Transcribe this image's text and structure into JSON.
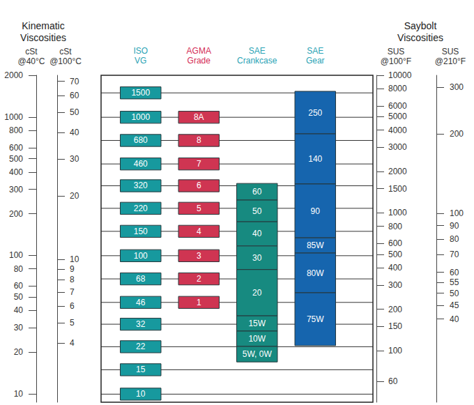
{
  "chart_data": {
    "type": "bar",
    "annotations": [
      "Kinematic Viscosities",
      "Saybolt Viscosities"
    ],
    "categories": [
      "ISO VG",
      "AGMA Grade",
      "SAE Crankcase",
      "SAE Gear"
    ],
    "log": "y",
    "grid": true,
    "ylabel": "cSt @40°C",
    "ylim": [
      8.7,
      2000
    ],
    "yticks": [
      10,
      20,
      30,
      40,
      50,
      60,
      80,
      100,
      200,
      300,
      400,
      500,
      600,
      800,
      1000,
      2000
    ],
    "y_axes": [
      {
        "label": "cSt @100°C",
        "lim": [
          2.1,
          74.8
        ],
        "ticks": [
          4,
          5,
          6,
          7,
          8,
          9,
          10,
          20,
          30,
          40,
          50,
          60,
          70
        ]
      },
      {
        "label": "SUS @100°F",
        "lim": [
          42.2,
          10000
        ],
        "ticks": [
          60,
          100,
          150,
          200,
          300,
          400,
          500,
          600,
          800,
          1000,
          1500,
          2000,
          3000,
          4000,
          5000,
          6000,
          8000,
          10000
        ]
      },
      {
        "label": "SUS @210°F",
        "lim": [
          19.4,
          332.5
        ],
        "ticks": [
          40,
          45,
          50,
          55,
          60,
          70,
          80,
          90,
          100,
          200,
          300
        ]
      }
    ],
    "series": [
      {
        "name": "ISO VG",
        "color": "#17999e",
        "labels": [
          "1500",
          "1000",
          "680",
          "460",
          "320",
          "220",
          "150",
          "100",
          "68",
          "46",
          "32",
          "22",
          "15",
          "10"
        ],
        "values": [
          [
            1350,
            1650
          ],
          [
            900,
            1100
          ],
          [
            612,
            748
          ],
          [
            414,
            506
          ],
          [
            288,
            352
          ],
          [
            198,
            242
          ],
          [
            135,
            165
          ],
          [
            90,
            110
          ],
          [
            61.2,
            74.8
          ],
          [
            41.4,
            50.6
          ],
          [
            28.8,
            35.2
          ],
          [
            19.8,
            24.2
          ],
          [
            13.5,
            16.5
          ],
          [
            9.0,
            11.0
          ]
        ]
      },
      {
        "name": "AGMA Grade",
        "color": "#cf3552",
        "labels": [
          "8A",
          "8",
          "7",
          "6",
          "5",
          "4",
          "3",
          "2",
          "1"
        ],
        "values": [
          [
            900,
            1100
          ],
          [
            612,
            748
          ],
          [
            414,
            506
          ],
          [
            288,
            352
          ],
          [
            198,
            242
          ],
          [
            135,
            165
          ],
          [
            90,
            110
          ],
          [
            61.2,
            74.8
          ],
          [
            41.4,
            50.6
          ]
        ]
      },
      {
        "name": "SAE Crankcase",
        "color": "#178a80",
        "labels": [
          "60",
          "50",
          "40",
          "30",
          "20",
          "15W",
          "10W",
          "5W, 0W"
        ],
        "values": [
          [
            251,
            331
          ],
          [
            175,
            251
          ],
          [
            117,
            175
          ],
          [
            79,
            117
          ],
          [
            36.6,
            79
          ],
          [
            28.4,
            36.6
          ],
          [
            22,
            28.4
          ],
          [
            17,
            22
          ]
        ]
      },
      {
        "name": "SAE Gear",
        "color": "#1665ae",
        "labels": [
          "250",
          "140",
          "90",
          "85W",
          "80W",
          "75W"
        ],
        "values": [
          [
            755,
            1532
          ],
          [
            328,
            755
          ],
          [
            134,
            328
          ],
          [
            104,
            134
          ],
          [
            53.7,
            104
          ],
          [
            22.3,
            53.7
          ]
        ]
      }
    ]
  }
}
